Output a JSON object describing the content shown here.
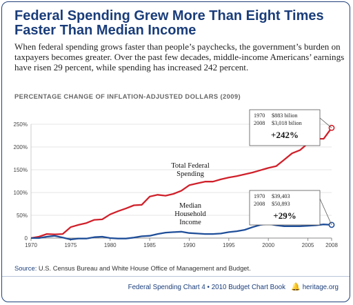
{
  "header": {
    "title": "Federal Spending Grew More Than Eight Times Faster Than Median Income",
    "intro": "When federal spending grows faster than people’s paychecks, the government’s burden on taxpayers becomes greater. Over the past few decades, middle-income Americans’ earnings have risen 29 percent, while spending has increased 242 percent."
  },
  "chart_data": {
    "type": "line",
    "title": "PERCENTAGE CHANGE OF INFLATION-ADJUSTED DOLLARS (2009)",
    "xlim": [
      1970,
      2008
    ],
    "ylim": [
      0,
      250
    ],
    "x_ticks": [
      1970,
      1975,
      1980,
      1985,
      1990,
      1995,
      2000,
      2005,
      2008
    ],
    "y_ticks": [
      0,
      50,
      100,
      150,
      200,
      250
    ],
    "y_tick_labels": [
      "0",
      "50%",
      "100%",
      "150%",
      "200%",
      "250%"
    ],
    "grid": true,
    "x": [
      1970,
      1971,
      1972,
      1973,
      1974,
      1975,
      1976,
      1977,
      1978,
      1979,
      1980,
      1981,
      1982,
      1983,
      1984,
      1985,
      1986,
      1987,
      1988,
      1989,
      1990,
      1991,
      1992,
      1993,
      1994,
      1995,
      1996,
      1997,
      1998,
      1999,
      2000,
      2001,
      2002,
      2003,
      2004,
      2005,
      2006,
      2007,
      2008
    ],
    "series": [
      {
        "name": "Total Federal Spending",
        "color": "#d0202a",
        "values": [
          0,
          3,
          9,
          8,
          9,
          24,
          29,
          33,
          40,
          41,
          52,
          59,
          65,
          72,
          73,
          91,
          95,
          93,
          97,
          104,
          116,
          120,
          124,
          124,
          129,
          133,
          136,
          140,
          144,
          149,
          154,
          158,
          172,
          186,
          193,
          208,
          218,
          218,
          242
        ]
      },
      {
        "name": "Median Household Income",
        "color": "#1f4e99",
        "values": [
          0,
          0,
          3,
          5,
          1,
          -3,
          -1,
          -1,
          2,
          3,
          0,
          -1,
          -1,
          1,
          4,
          5,
          9,
          12,
          13,
          14,
          11,
          10,
          9,
          9,
          10,
          13,
          15,
          18,
          24,
          29,
          31,
          28,
          26,
          26,
          26,
          27,
          28,
          30,
          29
        ]
      }
    ],
    "callouts": [
      {
        "series": 0,
        "row1_year": "1970",
        "row1_value": "$883 bilion",
        "row2_year": "2008",
        "row2_value": "$3,018 bilion",
        "change": "+242%"
      },
      {
        "series": 1,
        "row1_year": "1970",
        "row1_value": "$39,403",
        "row2_year": "2008",
        "row2_value": "$50,893",
        "change": "+29%"
      }
    ],
    "labels": [
      {
        "series": 0,
        "lines": [
          "Total Federal",
          "Spending"
        ]
      },
      {
        "series": 1,
        "lines": [
          "Median",
          "Household",
          "Income"
        ]
      }
    ]
  },
  "source": {
    "label": "Source:",
    "text": " U.S. Census Bureau and White House Office of Management and Budget."
  },
  "footer": {
    "text": "Federal Spending Chart 4 • 2010 Budget Chart Book",
    "org": "heritage.org",
    "bell_icon": "liberty-bell-icon"
  }
}
